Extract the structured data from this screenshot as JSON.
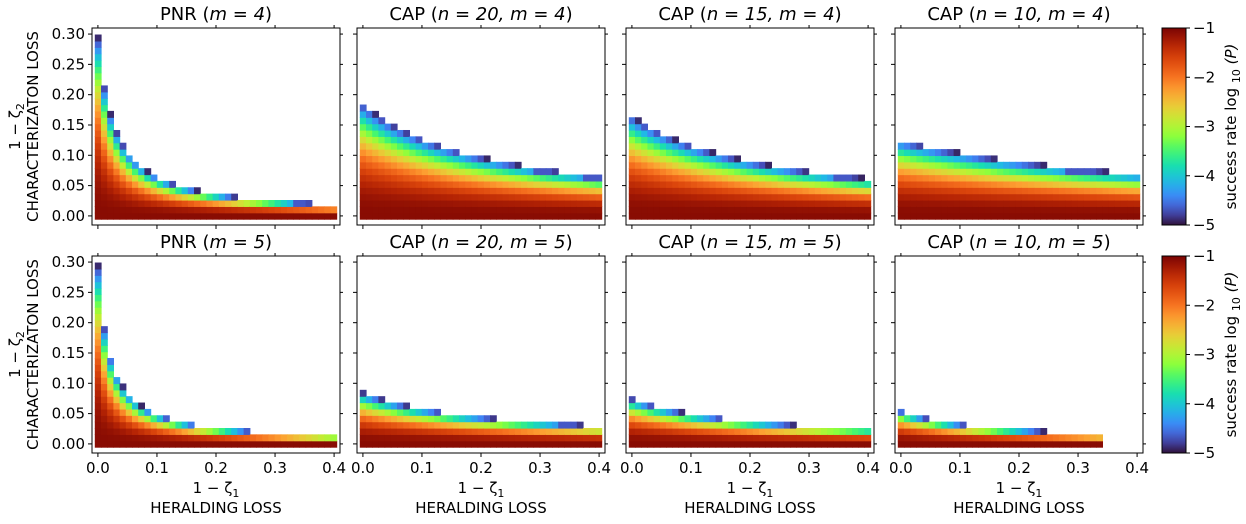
{
  "chart_data": {
    "type": "heatmap",
    "description_labels": {
      "x_math": "1 − ζ",
      "x_sub": "1",
      "xlabel": "HERALDING LOSS",
      "y_math": "1 − ζ",
      "y_sub": "2",
      "ylabel": "CHARACTERIZATON LOSS"
    },
    "xlim": [
      -0.01,
      0.41
    ],
    "ylim": [
      -0.015,
      0.31
    ],
    "xticks": [
      "0.0",
      "0.1",
      "0.2",
      "0.3",
      "0.4"
    ],
    "xtick_values": [
      0.0,
      0.1,
      0.2,
      0.3,
      0.4
    ],
    "yticks": [
      "0.00",
      "0.05",
      "0.10",
      "0.15",
      "0.20",
      "0.25",
      "0.30"
    ],
    "ytick_values": [
      0.0,
      0.05,
      0.1,
      0.15,
      0.2,
      0.25,
      0.3
    ],
    "cell_size": [
      0.0105,
      0.0105
    ],
    "colorbar": {
      "label": "success rate log",
      "label_sub": "10",
      "label_tail": "(P)",
      "range": [
        -5,
        -1
      ],
      "ticks": [
        "−1",
        "−2",
        "−3",
        "−4",
        "−5"
      ],
      "tick_values": [
        -1,
        -2,
        -3,
        -4,
        -5
      ],
      "colormap": "turbo"
    },
    "rows": [
      {
        "m": 4,
        "panels": [
          {
            "title_prefix": "PNR (",
            "title_math": "m = 4",
            "title_suffix": ")",
            "x_max": 0.4,
            "y_max_at_0": 0.295,
            "decay_k": 0.028,
            "x_start": 0.0
          },
          {
            "title_prefix": "CAP (",
            "title_math": "n = 20, m = 4",
            "title_suffix": ")",
            "x_max": 0.4,
            "y_max_at_0": 0.185,
            "decay_k": 0.22,
            "x_start": 0.0
          },
          {
            "title_prefix": "CAP (",
            "title_math": "n = 15, m = 4",
            "title_suffix": ")",
            "x_max": 0.4,
            "y_max_at_0": 0.165,
            "decay_k": 0.24,
            "x_start": 0.0
          },
          {
            "title_prefix": "CAP (",
            "title_math": "n = 10, m = 4",
            "title_suffix": ")",
            "x_max": 0.4,
            "y_max_at_0": 0.125,
            "decay_k": 0.5,
            "x_start": 0.0
          }
        ]
      },
      {
        "m": 5,
        "panels": [
          {
            "title_prefix": "PNR (",
            "title_math": "m = 5",
            "title_suffix": ")",
            "x_max": 0.4,
            "y_max_at_0": 0.295,
            "decay_k": 0.02,
            "x_start": 0.0
          },
          {
            "title_prefix": "CAP (",
            "title_math": "n = 20, m = 5",
            "title_suffix": ")",
            "x_max": 0.4,
            "y_max_at_0": 0.085,
            "decay_k": 0.22,
            "x_start": 0.0
          },
          {
            "title_prefix": "CAP (",
            "title_math": "n = 15, m = 5",
            "title_suffix": ")",
            "x_max": 0.4,
            "y_max_at_0": 0.075,
            "decay_k": 0.2,
            "x_start": 0.0
          },
          {
            "title_prefix": "CAP (",
            "title_math": "n = 10, m = 5",
            "title_suffix": ")",
            "x_max": 0.34,
            "y_max_at_0": 0.055,
            "decay_k": 0.15,
            "x_start": 0.0
          }
        ]
      }
    ]
  }
}
